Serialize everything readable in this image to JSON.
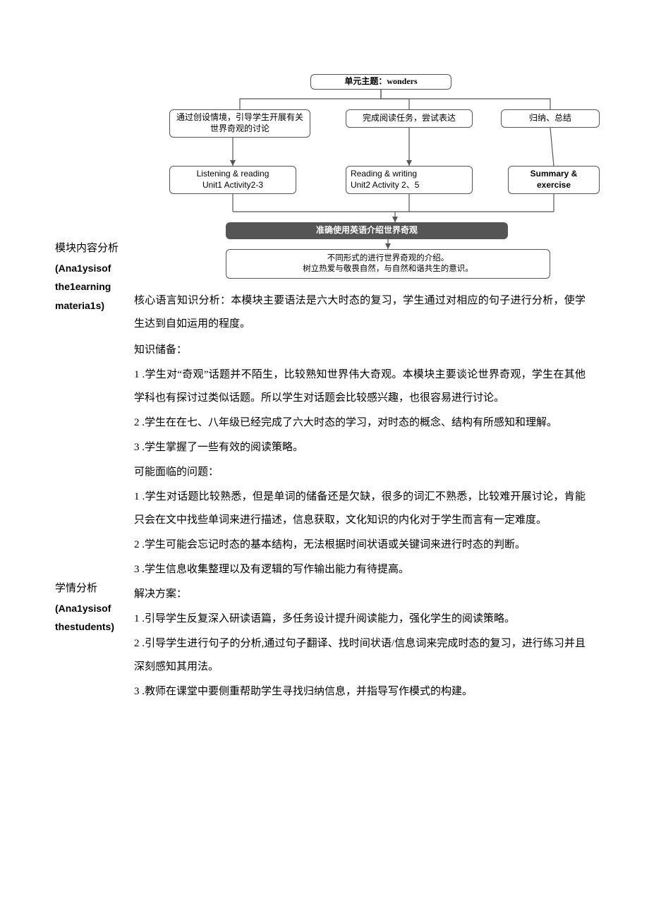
{
  "diagram": {
    "top": "单元主题：wonders",
    "row1": [
      "通过创设情境，引导学生开展有关世界奇观的讨论",
      "完成阅读任务，尝试表达",
      "归纳、总结"
    ],
    "row2": [
      "Listening & reading\nUnit1 Activity2-3",
      "Reading  & writing\nUnit2 Activity 2、5",
      "Summary &\nexercise"
    ],
    "darkbar": "准确使用英语介绍世界奇观",
    "bottom": "不同形式的进行世界奇观的介绍。\n树立热爱与敬畏自然，与自然和谐共生的意识。"
  },
  "section1": {
    "label_cn": "模块内容分析",
    "label_en_l1": "(Ana1ysisof",
    "label_en_l2": "the1earning",
    "label_en_l3": "materia1s)",
    "para": "核心语言知识分析：本模块主要语法是六大时态的复习，学生通过对相应的句子进行分析，使学生达到自如运用的程度。"
  },
  "section2": {
    "label_cn": "学情分析",
    "label_en_l1": "(Ana1ysisof",
    "label_en_l2": "thestudents)",
    "h1": "知识储备：",
    "k1": "1 .学生对“奇观”话题并不陌生，比较熟知世界伟大奇观。本模块主要谈论世界奇观，学生在其他学科也有探讨过类似话题。所以学生对话题会比较感兴趣，也很容易进行讨论。",
    "k2": "2 .学生在在七、八年级已经完成了六大时态的学习，对时态的概念、结构有所感知和理解。",
    "k3": "3 .学生掌握了一些有效的阅读策略。",
    "h2": "可能面临的问题：",
    "p1": "1 .学生对话题比较熟悉，但是单词的储备还是欠缺，很多的词汇不熟悉，比较难开展讨论，肯能只会在文中找些单词来进行描述，信息获取，文化知识的内化对于学生而言有一定难度。",
    "p2": "2 .学生可能会忘记时态的基本结构，无法根据时间状语或关键词来进行时态的判断。",
    "p3": "3 .学生信息收集整理以及有逻辑的写作输出能力有待提高。",
    "h3": "解决方案：",
    "s1": "1 .引导学生反复深入研读语篇，多任务设计提升阅读能力，强化学生的阅读策略。",
    "s2": "2 .引导学生进行句子的分析,通过句子翻译、找时间状语/信息词来完成时态的复习，进行练习并且深刻感知其用法。",
    "s3": "3 .教师在课堂中要侧重帮助学生寻找归纳信息，并指导写作模式的构建。"
  }
}
